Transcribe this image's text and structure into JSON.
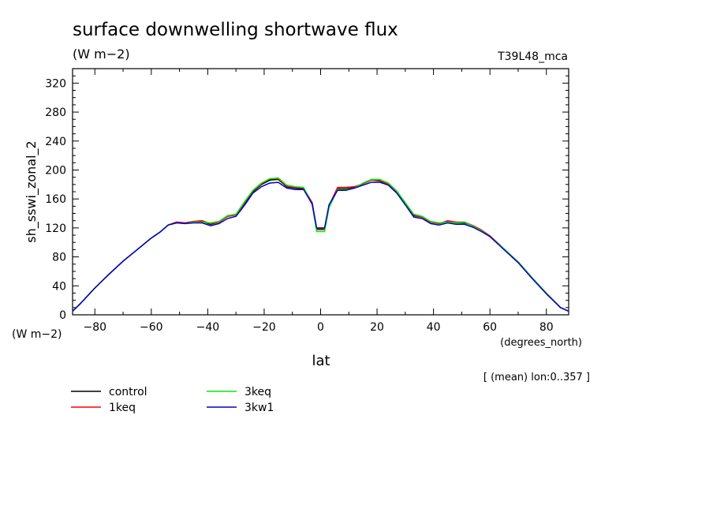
{
  "chart_data": {
    "type": "line",
    "title": "surface downwelling shortwave flux",
    "subtitle": "(W m−2)",
    "run_label": "T39L48_mca",
    "ylabel": "sh_sswi_zonal_2",
    "yunits": "(W m−2)",
    "xlabel": "lat",
    "xunits": "(degrees_north)",
    "note": "[ (mean) lon:0..357 ]",
    "xlim": [
      -87.9,
      87.9
    ],
    "ylim": [
      0,
      340
    ],
    "xticks": [
      -80,
      -60,
      -40,
      -20,
      0,
      20,
      40,
      60,
      80
    ],
    "yticks": [
      0,
      40,
      80,
      120,
      160,
      200,
      240,
      280,
      320
    ],
    "xtick_labels": [
      "−80",
      "−60",
      "−40",
      "−20",
      "0",
      "20",
      "40",
      "60",
      "80"
    ],
    "ytick_labels": [
      "0",
      "40",
      "80",
      "120",
      "160",
      "200",
      "240",
      "280",
      "320"
    ],
    "x": [
      -87.9,
      -85,
      -80,
      -75,
      -70,
      -65,
      -60,
      -57,
      -54,
      -51,
      -48,
      -45,
      -42,
      -39,
      -36,
      -33,
      -30,
      -27,
      -24,
      -21,
      -18,
      -15,
      -12,
      -9,
      -6,
      -3,
      -1.4,
      1.4,
      3,
      6,
      9,
      12,
      15,
      18,
      21,
      24,
      27,
      30,
      33,
      36,
      39,
      42,
      45,
      48,
      51,
      54,
      57,
      60,
      65,
      70,
      75,
      80,
      85,
      87.9
    ],
    "series": [
      {
        "name": "control",
        "color": "#000000",
        "values": [
          5,
          16,
          37,
          56,
          74,
          90,
          106,
          114,
          124,
          128,
          127,
          129,
          129,
          125,
          128,
          136,
          138,
          154,
          170,
          180,
          186,
          187,
          177,
          175,
          174,
          154,
          118,
          118,
          150,
          174,
          174,
          176,
          181,
          186,
          185,
          180,
          169,
          153,
          137,
          135,
          128,
          126,
          129,
          127,
          127,
          123,
          117,
          109,
          91,
          73,
          51,
          30,
          10,
          5
        ]
      },
      {
        "name": "1keq",
        "color": "#ff0000",
        "values": [
          5,
          16,
          37,
          56,
          74,
          90,
          106,
          114,
          124,
          128,
          127,
          129,
          130,
          126,
          128,
          136,
          138,
          155,
          171,
          181,
          188,
          188,
          178,
          176,
          175,
          155,
          119,
          119,
          151,
          176,
          176,
          177,
          181,
          186,
          186,
          180,
          170,
          154,
          138,
          135,
          128,
          126,
          130,
          128,
          128,
          123,
          117,
          109,
          91,
          73,
          51,
          30,
          10,
          5
        ]
      },
      {
        "name": "3keq",
        "color": "#00ee00",
        "values": [
          5,
          16,
          37,
          56,
          74,
          90,
          106,
          114,
          124,
          127,
          126,
          128,
          128,
          127,
          129,
          137,
          139,
          156,
          172,
          182,
          188,
          189,
          179,
          177,
          176,
          152,
          115,
          115,
          148,
          173,
          173,
          175,
          182,
          187,
          187,
          182,
          171,
          155,
          139,
          136,
          129,
          127,
          128,
          127,
          128,
          122,
          116,
          108,
          91,
          73,
          51,
          30,
          10,
          5
        ]
      },
      {
        "name": "3kw1",
        "color": "#0000cc",
        "values": [
          5,
          16,
          37,
          56,
          74,
          90,
          106,
          114,
          124,
          127,
          126,
          127,
          127,
          123,
          126,
          133,
          136,
          151,
          168,
          177,
          182,
          183,
          175,
          173,
          173,
          153,
          120,
          120,
          152,
          172,
          172,
          175,
          179,
          183,
          183,
          179,
          168,
          152,
          135,
          133,
          126,
          124,
          127,
          125,
          125,
          121,
          115,
          108,
          90,
          72,
          50,
          29,
          10,
          5
        ]
      }
    ],
    "legend": [
      {
        "label": "control",
        "color": "#000000"
      },
      {
        "label": "1keq",
        "color": "#ff0000"
      },
      {
        "label": "3keq",
        "color": "#00ee00"
      },
      {
        "label": "3kw1",
        "color": "#0000cc"
      }
    ],
    "grid": false,
    "legend_position": "bottom-left"
  }
}
